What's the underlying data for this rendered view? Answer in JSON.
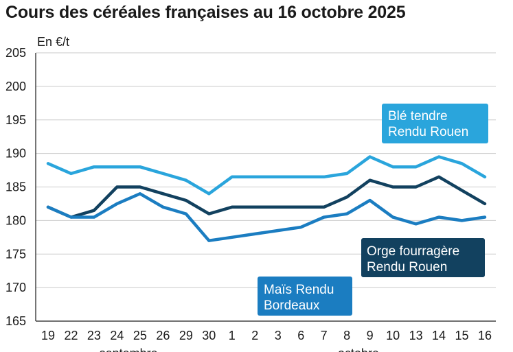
{
  "chart_data": {
    "type": "line",
    "title": "Cours des céréales françaises au 16 octobre 2025",
    "ylabel": "En €/t",
    "xlabel": "",
    "ylim": [
      165,
      205
    ],
    "yticks": [
      165,
      170,
      175,
      180,
      185,
      190,
      195,
      200,
      205
    ],
    "grid": true,
    "categories": [
      "19",
      "22",
      "23",
      "24",
      "25",
      "26",
      "29",
      "30",
      "1",
      "2",
      "3",
      "6",
      "7",
      "8",
      "9",
      "10",
      "13",
      "14",
      "15",
      "16"
    ],
    "month_labels": [
      {
        "label": "septembre",
        "center_index": 3.5
      },
      {
        "label": "octobre",
        "center_index": 13.5
      }
    ],
    "series": [
      {
        "name": "Blé tendre Rendu Rouen",
        "name_lines": [
          "Blé tendre",
          "Rendu Rouen"
        ],
        "color": "#2aa5dc",
        "values": [
          188.5,
          187,
          188,
          188,
          188,
          187,
          186,
          184,
          186.5,
          186.5,
          186.5,
          186.5,
          186.5,
          187,
          189.5,
          188,
          188,
          189.5,
          188.5,
          186.5
        ]
      },
      {
        "name": "Orge fourragère Rendu Rouen",
        "name_lines": [
          "Orge fourragère",
          "Rendu Rouen"
        ],
        "color": "#12415f",
        "values": [
          182,
          180.5,
          181.5,
          185,
          185,
          184,
          183,
          181,
          182,
          182,
          182,
          182,
          182,
          183.5,
          186,
          185,
          185,
          186.5,
          184.5,
          182.5
        ]
      },
      {
        "name": "Maïs Rendu Bordeaux",
        "name_lines": [
          "Maïs Rendu",
          "Bordeaux"
        ],
        "color": "#1b7dc1",
        "values": [
          182,
          180.5,
          180.5,
          182.5,
          184,
          182,
          181,
          177,
          177.5,
          178,
          178.5,
          179,
          180.5,
          181,
          183,
          180.5,
          179.5,
          180.5,
          180,
          180.5
        ]
      }
    ],
    "legend_placement": "inline labels"
  }
}
